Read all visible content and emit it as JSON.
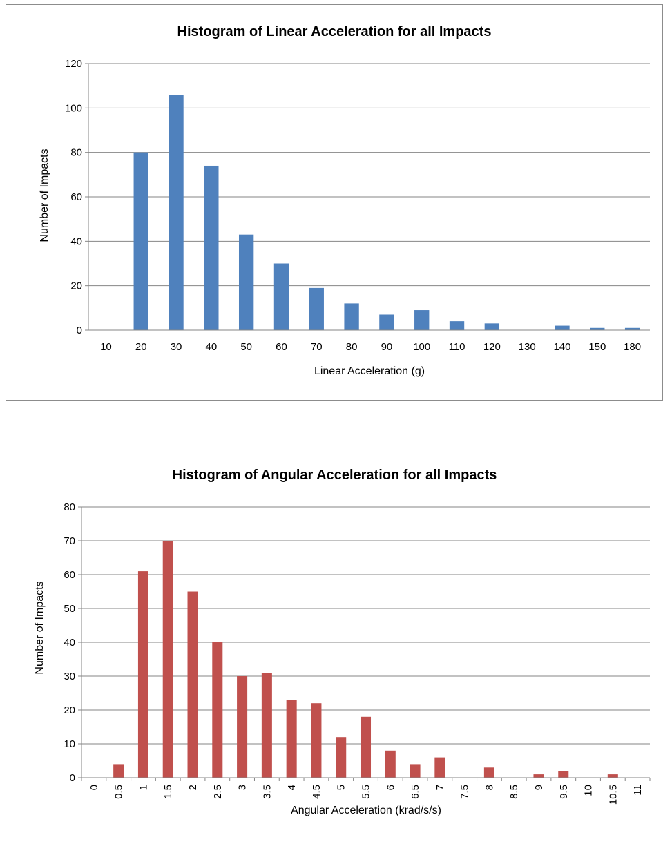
{
  "chart_data": [
    {
      "type": "bar",
      "title": "Histogram of Linear Acceleration for all Impacts",
      "xlabel": "Linear Acceleration (g)",
      "ylabel": "Number of Impacts",
      "ylim": [
        0,
        120
      ],
      "yticks": [
        0,
        20,
        40,
        60,
        80,
        100,
        120
      ],
      "grid": true,
      "categories": [
        "10",
        "20",
        "30",
        "40",
        "50",
        "60",
        "70",
        "80",
        "90",
        "100",
        "110",
        "120",
        "130",
        "140",
        "150",
        "180"
      ],
      "values": [
        0,
        80,
        106,
        74,
        43,
        30,
        19,
        12,
        7,
        9,
        4,
        3,
        0,
        2,
        1,
        1
      ],
      "color": "#4f81bd",
      "x_tick_rotation": 0
    },
    {
      "type": "bar",
      "title": "Histogram of Angular Acceleration for all Impacts",
      "xlabel": "Angular Acceleration (krad/s/s)",
      "ylabel": "Number of Impacts",
      "ylim": [
        0,
        80
      ],
      "yticks": [
        0,
        10,
        20,
        30,
        40,
        50,
        60,
        70,
        80
      ],
      "grid": true,
      "categories": [
        "0",
        "0.5",
        "1",
        "1.5",
        "2",
        "2.5",
        "3",
        "3.5",
        "4",
        "4.5",
        "5",
        "5.5",
        "6",
        "6.5",
        "7",
        "7.5",
        "8",
        "8.5",
        "9",
        "9.5",
        "10",
        "10.5",
        "11"
      ],
      "values": [
        0,
        4,
        61,
        70,
        55,
        40,
        30,
        31,
        23,
        22,
        12,
        18,
        8,
        4,
        6,
        0,
        3,
        0,
        1,
        2,
        0,
        1,
        0
      ],
      "color": "#c0504d",
      "x_tick_rotation": -90
    }
  ]
}
